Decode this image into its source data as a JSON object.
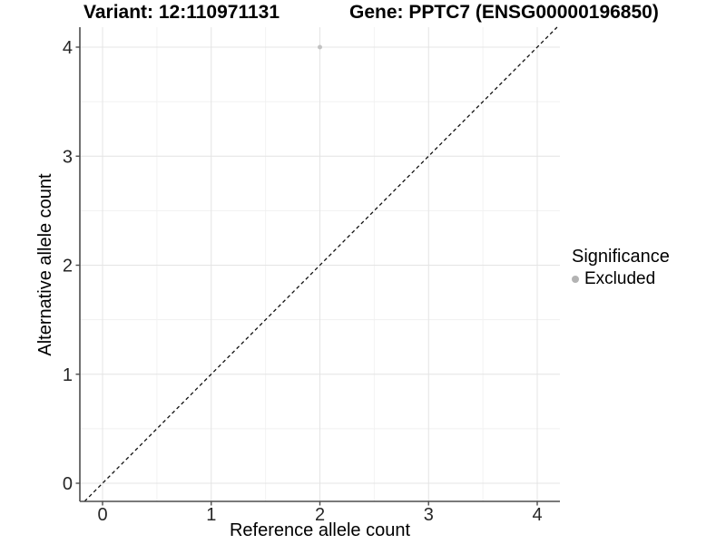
{
  "header": {
    "variant_title": "Variant: 12:110971131",
    "gene_title": "Gene: PPTC7 (ENSG00000196850)"
  },
  "chart_data": {
    "type": "scatter",
    "title": "Variant: 12:110971131   Gene: PPTC7 (ENSG00000196850)",
    "xlabel": "Reference allele count",
    "ylabel": "Alternative allele count",
    "xlim": [
      -0.21,
      4.21
    ],
    "ylim": [
      -0.17,
      4.18
    ],
    "x_ticks": [
      0,
      1,
      2,
      3,
      4
    ],
    "y_ticks": [
      0,
      1,
      2,
      3,
      4
    ],
    "grid": "major+minor",
    "points": [
      {
        "x": 2,
        "y": 4,
        "series": "Excluded",
        "color": "#c2c2c2",
        "radius": 2.5
      }
    ],
    "reference_line": {
      "type": "abline",
      "slope": 1,
      "intercept": 0,
      "style": "dashed",
      "color": "#111111"
    },
    "legend": {
      "title": "Significance",
      "position": "right",
      "entries": [
        {
          "label": "Excluded",
          "color": "#b3b3b3",
          "marker": "circle"
        }
      ]
    },
    "style": {
      "panel_background": "#ffffff",
      "major_grid_color": "#e4e4e4",
      "minor_grid_color": "#f1f1f1",
      "axis_line_color": "#4d4d4d",
      "tick_label_color": "#262626"
    }
  }
}
